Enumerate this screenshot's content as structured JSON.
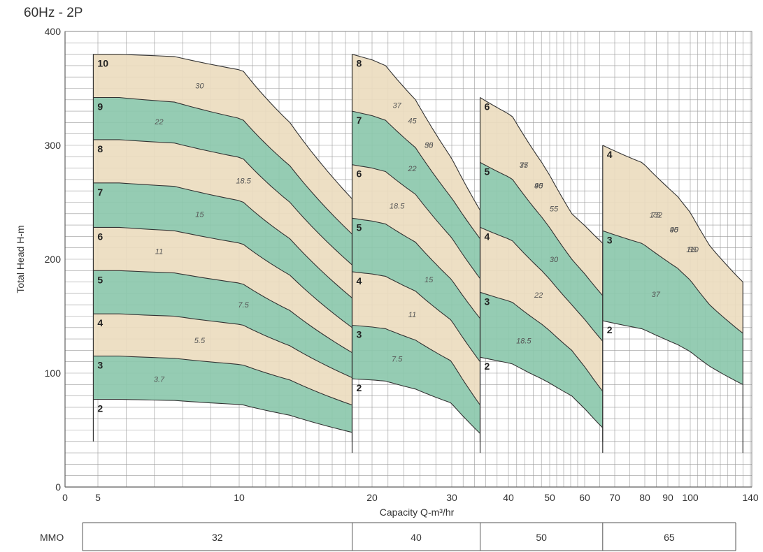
{
  "title": "60Hz - 2P",
  "chart_data": {
    "type": "area",
    "xlabel": "Capacity Q-m³/hr",
    "ylabel": "Total Head H-m",
    "x_scale": "log",
    "xlim": [
      0,
      140
    ],
    "ylim": [
      0,
      400
    ],
    "x_ticks": [
      0,
      5,
      10,
      20,
      30,
      40,
      50,
      60,
      70,
      80,
      90,
      100,
      140
    ],
    "y_ticks": [
      0,
      100,
      200,
      300,
      400
    ],
    "grid": true,
    "colors": {
      "tan": "#ecdcbf",
      "green": "#8cc8ac",
      "curve": "#333333",
      "grid": "#9a9a9a"
    },
    "groups": [
      {
        "mmo": "32",
        "x_range": [
          4.3,
          18.5
        ],
        "stages": [
          {
            "label": "10",
            "head": [
              380,
              380,
              378,
              365,
              320,
              253
            ],
            "at_qmax": 253
          },
          {
            "label": "9",
            "head": [
              342,
              342,
              338,
              322,
              282,
              222
            ],
            "at_qmax": 222
          },
          {
            "label": "8",
            "head": [
              305,
              305,
              302,
              288,
              250,
              195
            ],
            "at_qmax": 195
          },
          {
            "label": "7",
            "head": [
              267,
              267,
              264,
              250,
              218,
              166
            ],
            "at_qmax": 166
          },
          {
            "label": "6",
            "head": [
              228,
              228,
              225,
              213,
              186,
              140
            ],
            "at_qmax": 140
          },
          {
            "label": "5",
            "head": [
              190,
              190,
              188,
              178,
              155,
              118
            ],
            "at_qmax": 118
          },
          {
            "label": "4",
            "head": [
              152,
              152,
              150,
              142,
              124,
              96
            ],
            "at_qmax": 96
          },
          {
            "label": "3",
            "head": [
              115,
              115,
              113,
              107,
              94,
              72
            ],
            "at_qmax": 72
          },
          {
            "label": "2",
            "head": [
              77,
              77,
              76,
              72,
              63,
              48
            ],
            "at_qmax": 48
          }
        ],
        "power_labels": [
          "3.7",
          "5.5",
          "7.5",
          "11",
          "15",
          "18.5",
          "22",
          "30"
        ]
      },
      {
        "mmo": "40",
        "x_range": [
          18.5,
          35
        ],
        "stages": [
          {
            "label": "8",
            "head": [
              380,
              370,
              340,
              290,
              243
            ]
          },
          {
            "label": "7",
            "head": [
              330,
              322,
              298,
              255,
              218
            ]
          },
          {
            "label": "6",
            "head": [
              283,
              277,
              257,
              220,
              183
            ]
          },
          {
            "label": "5",
            "head": [
              236,
              231,
              215,
              183,
              148
            ]
          },
          {
            "label": "4",
            "head": [
              189,
              185,
              172,
              147,
              110
            ]
          },
          {
            "label": "3",
            "head": [
              142,
              139,
              129,
              111,
              72
            ]
          },
          {
            "label": "2",
            "head": [
              95,
              93,
              86,
              74,
              47
            ]
          }
        ],
        "power_labels": [
          "7.5",
          "11",
          "15",
          "18.5",
          "22",
          "30",
          "37",
          "45",
          "55"
        ]
      },
      {
        "mmo": "50",
        "x_range": [
          35,
          66
        ],
        "stages": [
          {
            "label": "6",
            "head": [
              342,
              325,
              285,
              240,
              214
            ]
          },
          {
            "label": "5",
            "head": [
              285,
              270,
              237,
              200,
              168
            ]
          },
          {
            "label": "4",
            "head": [
              228,
              216,
              190,
              160,
              128
            ]
          },
          {
            "label": "3",
            "head": [
              171,
              162,
              143,
              120,
              84
            ]
          },
          {
            "label": "2",
            "head": [
              114,
              108,
              95,
              80,
              52
            ]
          }
        ],
        "power_labels": [
          "18.5",
          "22",
          "30",
          "37",
          "45",
          "55",
          "75",
          "90"
        ]
      },
      {
        "mmo": "65",
        "x_range": [
          66,
          135
        ],
        "stages": [
          {
            "label": "4",
            "head": [
              300,
              285,
              255,
              212,
              180
            ]
          },
          {
            "label": "3",
            "head": [
              225,
              214,
              192,
              160,
              135
            ]
          },
          {
            "label": "2",
            "head": [
              146,
              139,
              125,
              106,
              90
            ]
          }
        ],
        "power_labels": [
          "37",
          "45",
          "55",
          "75",
          "90",
          "110",
          "132"
        ]
      }
    ],
    "footer": {
      "label": "MMO",
      "cells": [
        "32",
        "40",
        "50",
        "65"
      ]
    }
  }
}
